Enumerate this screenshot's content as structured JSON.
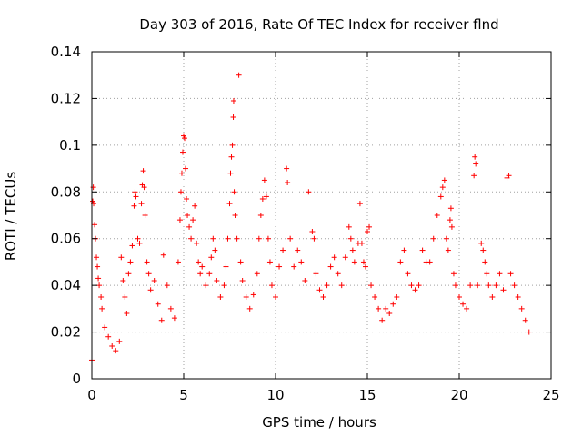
{
  "chart_data": {
    "type": "scatter",
    "title": "Day 303 of 2016, Rate Of TEC Index for receiver flnd",
    "xlabel": "GPS time / hours",
    "ylabel": "ROTI / TECUs",
    "xlim": [
      0,
      25
    ],
    "ylim": [
      0,
      0.14
    ],
    "x_ticks": [
      0,
      5,
      10,
      15,
      20,
      25
    ],
    "x_tick_labels": [
      "0",
      "5",
      "10",
      "15",
      "20",
      "25"
    ],
    "y_ticks": [
      0,
      0.02,
      0.04,
      0.06,
      0.08,
      0.1,
      0.12,
      0.14
    ],
    "y_tick_labels": [
      "0",
      "0.02",
      "0.04",
      "0.06",
      "0.08",
      "0.1",
      "0.12",
      "0.14"
    ],
    "grid": true,
    "marker": "+",
    "series": [
      {
        "name": "ROTI",
        "color": "#ff0000",
        "points": [
          [
            0.0,
            0.008
          ],
          [
            0.05,
            0.076
          ],
          [
            0.08,
            0.082
          ],
          [
            0.1,
            0.075
          ],
          [
            0.15,
            0.066
          ],
          [
            0.2,
            0.06
          ],
          [
            0.25,
            0.052
          ],
          [
            0.3,
            0.048
          ],
          [
            0.35,
            0.043
          ],
          [
            0.4,
            0.04
          ],
          [
            0.5,
            0.035
          ],
          [
            0.55,
            0.03
          ],
          [
            0.7,
            0.022
          ],
          [
            0.9,
            0.018
          ],
          [
            1.1,
            0.014
          ],
          [
            1.3,
            0.012
          ],
          [
            1.5,
            0.016
          ],
          [
            1.6,
            0.052
          ],
          [
            1.7,
            0.042
          ],
          [
            1.8,
            0.035
          ],
          [
            1.9,
            0.028
          ],
          [
            2.0,
            0.045
          ],
          [
            2.1,
            0.05
          ],
          [
            2.2,
            0.057
          ],
          [
            2.3,
            0.074
          ],
          [
            2.35,
            0.08
          ],
          [
            2.4,
            0.078
          ],
          [
            2.5,
            0.06
          ],
          [
            2.6,
            0.058
          ],
          [
            2.7,
            0.075
          ],
          [
            2.75,
            0.083
          ],
          [
            2.8,
            0.089
          ],
          [
            2.85,
            0.082
          ],
          [
            2.9,
            0.07
          ],
          [
            3.0,
            0.05
          ],
          [
            3.1,
            0.045
          ],
          [
            3.2,
            0.038
          ],
          [
            3.4,
            0.042
          ],
          [
            3.6,
            0.032
          ],
          [
            3.8,
            0.025
          ],
          [
            3.9,
            0.053
          ],
          [
            4.1,
            0.04
          ],
          [
            4.3,
            0.03
          ],
          [
            4.5,
            0.026
          ],
          [
            4.7,
            0.05
          ],
          [
            4.8,
            0.068
          ],
          [
            4.85,
            0.08
          ],
          [
            4.9,
            0.088
          ],
          [
            4.95,
            0.097
          ],
          [
            5.0,
            0.104
          ],
          [
            5.05,
            0.103
          ],
          [
            5.1,
            0.09
          ],
          [
            5.15,
            0.077
          ],
          [
            5.2,
            0.07
          ],
          [
            5.3,
            0.065
          ],
          [
            5.4,
            0.06
          ],
          [
            5.5,
            0.068
          ],
          [
            5.6,
            0.074
          ],
          [
            5.7,
            0.058
          ],
          [
            5.8,
            0.05
          ],
          [
            5.9,
            0.045
          ],
          [
            6.0,
            0.048
          ],
          [
            6.2,
            0.04
          ],
          [
            6.4,
            0.045
          ],
          [
            6.5,
            0.052
          ],
          [
            6.6,
            0.06
          ],
          [
            6.7,
            0.055
          ],
          [
            6.8,
            0.042
          ],
          [
            7.0,
            0.035
          ],
          [
            7.2,
            0.04
          ],
          [
            7.3,
            0.048
          ],
          [
            7.4,
            0.06
          ],
          [
            7.5,
            0.075
          ],
          [
            7.55,
            0.088
          ],
          [
            7.6,
            0.095
          ],
          [
            7.65,
            0.1
          ],
          [
            7.7,
            0.112
          ],
          [
            7.72,
            0.119
          ],
          [
            7.75,
            0.08
          ],
          [
            7.8,
            0.07
          ],
          [
            7.9,
            0.06
          ],
          [
            8.0,
            0.13
          ],
          [
            8.1,
            0.05
          ],
          [
            8.2,
            0.042
          ],
          [
            8.4,
            0.035
          ],
          [
            8.6,
            0.03
          ],
          [
            8.8,
            0.036
          ],
          [
            9.0,
            0.045
          ],
          [
            9.1,
            0.06
          ],
          [
            9.2,
            0.07
          ],
          [
            9.3,
            0.077
          ],
          [
            9.4,
            0.085
          ],
          [
            9.5,
            0.078
          ],
          [
            9.6,
            0.06
          ],
          [
            9.7,
            0.05
          ],
          [
            9.8,
            0.04
          ],
          [
            10.0,
            0.035
          ],
          [
            10.2,
            0.048
          ],
          [
            10.4,
            0.055
          ],
          [
            10.6,
            0.09
          ],
          [
            10.65,
            0.084
          ],
          [
            10.8,
            0.06
          ],
          [
            11.0,
            0.048
          ],
          [
            11.2,
            0.055
          ],
          [
            11.4,
            0.05
          ],
          [
            11.6,
            0.042
          ],
          [
            11.8,
            0.08
          ],
          [
            12.0,
            0.063
          ],
          [
            12.1,
            0.06
          ],
          [
            12.2,
            0.045
          ],
          [
            12.4,
            0.038
          ],
          [
            12.6,
            0.035
          ],
          [
            12.8,
            0.04
          ],
          [
            13.0,
            0.048
          ],
          [
            13.2,
            0.052
          ],
          [
            13.4,
            0.045
          ],
          [
            13.6,
            0.04
          ],
          [
            13.8,
            0.052
          ],
          [
            14.0,
            0.065
          ],
          [
            14.1,
            0.06
          ],
          [
            14.2,
            0.055
          ],
          [
            14.3,
            0.05
          ],
          [
            14.5,
            0.058
          ],
          [
            14.6,
            0.075
          ],
          [
            14.7,
            0.058
          ],
          [
            14.8,
            0.05
          ],
          [
            14.9,
            0.048
          ],
          [
            15.0,
            0.063
          ],
          [
            15.1,
            0.065
          ],
          [
            15.2,
            0.04
          ],
          [
            15.4,
            0.035
          ],
          [
            15.6,
            0.03
          ],
          [
            15.8,
            0.025
          ],
          [
            16.0,
            0.03
          ],
          [
            16.2,
            0.028
          ],
          [
            16.4,
            0.032
          ],
          [
            16.6,
            0.035
          ],
          [
            16.8,
            0.05
          ],
          [
            17.0,
            0.055
          ],
          [
            17.2,
            0.045
          ],
          [
            17.4,
            0.04
          ],
          [
            17.6,
            0.038
          ],
          [
            17.8,
            0.04
          ],
          [
            18.0,
            0.055
          ],
          [
            18.2,
            0.05
          ],
          [
            18.4,
            0.05
          ],
          [
            18.6,
            0.06
          ],
          [
            18.8,
            0.07
          ],
          [
            19.0,
            0.078
          ],
          [
            19.1,
            0.082
          ],
          [
            19.2,
            0.085
          ],
          [
            19.3,
            0.06
          ],
          [
            19.4,
            0.055
          ],
          [
            19.5,
            0.068
          ],
          [
            19.55,
            0.073
          ],
          [
            19.6,
            0.065
          ],
          [
            19.7,
            0.045
          ],
          [
            19.8,
            0.04
          ],
          [
            20.0,
            0.035
          ],
          [
            20.2,
            0.032
          ],
          [
            20.4,
            0.03
          ],
          [
            20.6,
            0.04
          ],
          [
            20.8,
            0.087
          ],
          [
            20.85,
            0.095
          ],
          [
            20.9,
            0.092
          ],
          [
            21.0,
            0.04
          ],
          [
            21.2,
            0.058
          ],
          [
            21.3,
            0.055
          ],
          [
            21.4,
            0.05
          ],
          [
            21.5,
            0.045
          ],
          [
            21.6,
            0.04
          ],
          [
            21.8,
            0.035
          ],
          [
            22.0,
            0.04
          ],
          [
            22.2,
            0.045
          ],
          [
            22.4,
            0.038
          ],
          [
            22.6,
            0.086
          ],
          [
            22.7,
            0.087
          ],
          [
            22.8,
            0.045
          ],
          [
            23.0,
            0.04
          ],
          [
            23.2,
            0.035
          ],
          [
            23.4,
            0.03
          ],
          [
            23.6,
            0.025
          ],
          [
            23.8,
            0.02
          ]
        ]
      }
    ]
  }
}
